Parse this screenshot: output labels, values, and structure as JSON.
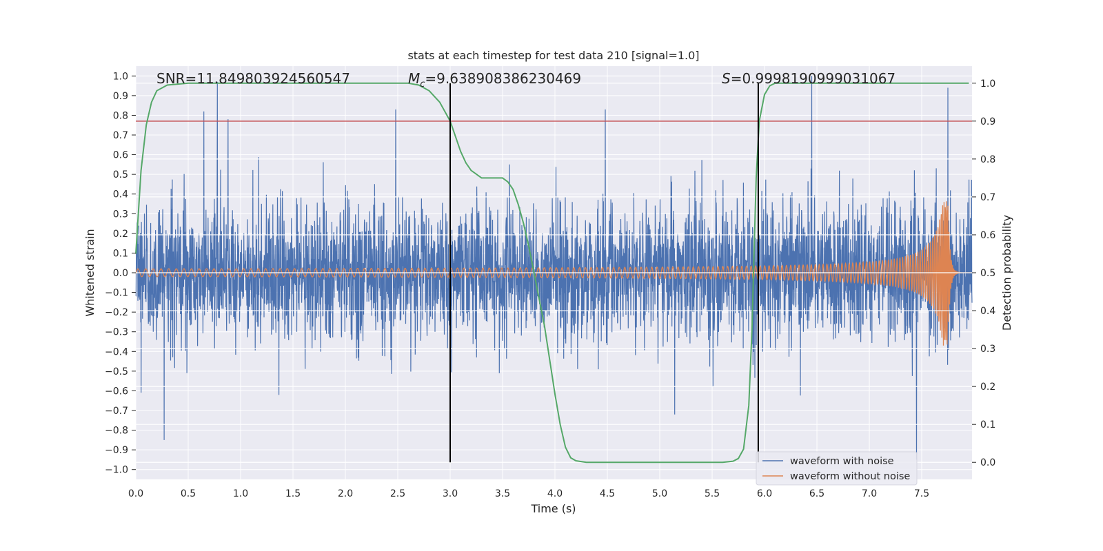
{
  "chart_data": {
    "type": "line",
    "title": "stats at each timestep for test data 210 [signal=1.0]",
    "xlabel": "Time (s)",
    "ylabel_left": "Whitened strain",
    "ylabel_right": "Detection probability",
    "xlim": [
      0.0,
      7.98
    ],
    "ylim_left": [
      -1.05,
      1.05
    ],
    "ylim_right": [
      -0.045,
      1.045
    ],
    "x_ticks": [
      0.0,
      0.5,
      1.0,
      1.5,
      2.0,
      2.5,
      3.0,
      3.5,
      4.0,
      4.5,
      5.0,
      5.5,
      6.0,
      6.5,
      7.0,
      7.5
    ],
    "x_tick_labels": [
      "0.0",
      "0.5",
      "1.0",
      "1.5",
      "2.0",
      "2.5",
      "3.0",
      "3.5",
      "4.0",
      "4.5",
      "5.0",
      "5.5",
      "6.0",
      "6.5",
      "7.0",
      "7.5"
    ],
    "y_left_ticks": [
      -1.0,
      -0.9,
      -0.8,
      -0.7,
      -0.6,
      -0.5,
      -0.4,
      -0.3,
      -0.2,
      -0.1,
      0.0,
      0.1,
      0.2,
      0.3,
      0.4,
      0.5,
      0.6,
      0.7,
      0.8,
      0.9,
      1.0
    ],
    "y_left_tick_labels": [
      "−1.0",
      "−0.9",
      "−0.8",
      "−0.7",
      "−0.6",
      "−0.5",
      "−0.4",
      "−0.3",
      "−0.2",
      "−0.1",
      "0.0",
      "0.1",
      "0.2",
      "0.3",
      "0.4",
      "0.5",
      "0.6",
      "0.7",
      "0.8",
      "0.9",
      "1.0"
    ],
    "y_right_ticks": [
      0.0,
      0.1,
      0.2,
      0.3,
      0.4,
      0.5,
      0.6,
      0.7,
      0.8,
      0.9,
      1.0
    ],
    "y_right_tick_labels": [
      "0.0",
      "0.1",
      "0.2",
      "0.3",
      "0.4",
      "0.5",
      "0.6",
      "0.7",
      "0.8",
      "0.9",
      "1.0"
    ],
    "annotations": {
      "snr_text": "SNR=11.849803924560547",
      "mc_symbol": "M",
      "mc_subscript": "c",
      "mc_value": "=9.638908386230469",
      "s_symbol": "S",
      "s_value": "=0.9998190999031067"
    },
    "vertical_lines_x": [
      3.0,
      5.94
    ],
    "threshold_line_right_y": 0.9,
    "legend": {
      "position": "lower-right",
      "entries": [
        "waveform with noise",
        "waveform without noise"
      ]
    },
    "colors": {
      "background": "#eaeaf2",
      "grid": "#ffffff",
      "noise": "#4c72b0",
      "clean": "#dd8452",
      "probability": "#55a868",
      "threshold": "#c44e52",
      "vline": "#000000"
    },
    "series": [
      {
        "name": "waveform with noise",
        "axis": "left",
        "description_values": "dense noise spanning roughly -0.6 to 0.6 with spikes",
        "notable_peaks": [
          {
            "x": 0.27,
            "y": -0.85
          },
          {
            "x": 0.65,
            "y": 0.82
          },
          {
            "x": 0.88,
            "y": 0.78
          },
          {
            "x": 2.48,
            "y": 0.83
          },
          {
            "x": 4.48,
            "y": 0.83
          },
          {
            "x": 6.45,
            "y": 1.0
          },
          {
            "x": 7.45,
            "y": -0.95
          },
          {
            "x": 7.75,
            "y": 0.94
          }
        ]
      },
      {
        "name": "waveform without noise",
        "axis": "left",
        "description_values": "chirp whose amplitude grows from 0.02 to 0.37 before merging at 7.75 s",
        "start_amplitude": 0.02,
        "peak_amplitude": 0.37,
        "merger_time": 7.75
      },
      {
        "name": "detection probability",
        "axis": "right",
        "x": [
          0.0,
          0.05,
          0.1,
          0.15,
          0.2,
          0.3,
          0.5,
          1.0,
          2.0,
          2.6,
          2.7,
          2.8,
          2.9,
          3.0,
          3.05,
          3.1,
          3.15,
          3.2,
          3.3,
          3.4,
          3.5,
          3.55,
          3.6,
          3.65,
          3.7,
          3.75,
          3.8,
          3.85,
          3.9,
          3.95,
          4.0,
          4.05,
          4.1,
          4.15,
          4.2,
          4.3,
          5.0,
          5.6,
          5.7,
          5.75,
          5.8,
          5.85,
          5.88,
          5.9,
          5.92,
          5.95,
          6.0,
          6.05,
          6.1,
          7.95
        ],
        "y": [
          0.55,
          0.77,
          0.89,
          0.95,
          0.98,
          0.995,
          1.0,
          1.0,
          1.0,
          1.0,
          0.995,
          0.98,
          0.95,
          0.9,
          0.86,
          0.82,
          0.79,
          0.77,
          0.75,
          0.75,
          0.75,
          0.74,
          0.72,
          0.68,
          0.63,
          0.57,
          0.5,
          0.43,
          0.36,
          0.27,
          0.18,
          0.1,
          0.04,
          0.012,
          0.004,
          0.0,
          0.0,
          0.0,
          0.003,
          0.01,
          0.035,
          0.15,
          0.35,
          0.55,
          0.75,
          0.9,
          0.97,
          0.993,
          1.0,
          1.0
        ]
      },
      {
        "name": "threshold",
        "axis": "right",
        "y": 0.9
      }
    ]
  }
}
